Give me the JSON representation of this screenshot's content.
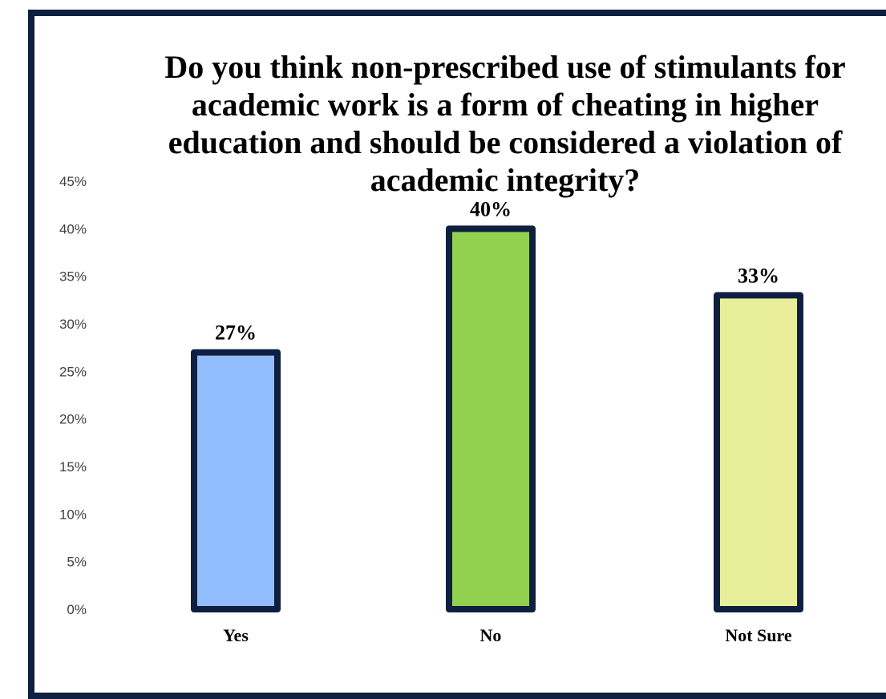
{
  "chart_data": {
    "type": "bar",
    "title": "Do you think non-prescribed use of stimulants for academic work is a form of cheating in higher education and should be considered a violation of academic integrity?",
    "categories": [
      "Yes",
      "No",
      "Not Sure"
    ],
    "values": [
      27,
      40,
      33
    ],
    "data_labels": [
      "27%",
      "40%",
      "33%"
    ],
    "ylim": [
      0,
      45
    ],
    "yticks": [
      "0%",
      "5%",
      "10%",
      "15%",
      "20%",
      "25%",
      "30%",
      "35%",
      "40%",
      "45%"
    ],
    "colors": [
      "#92bdff",
      "#92d050",
      "#e8ee9a"
    ],
    "bar_outline_color": "#0f1f40",
    "frame_color": "#0f1f40",
    "grid": false,
    "legend": false
  }
}
